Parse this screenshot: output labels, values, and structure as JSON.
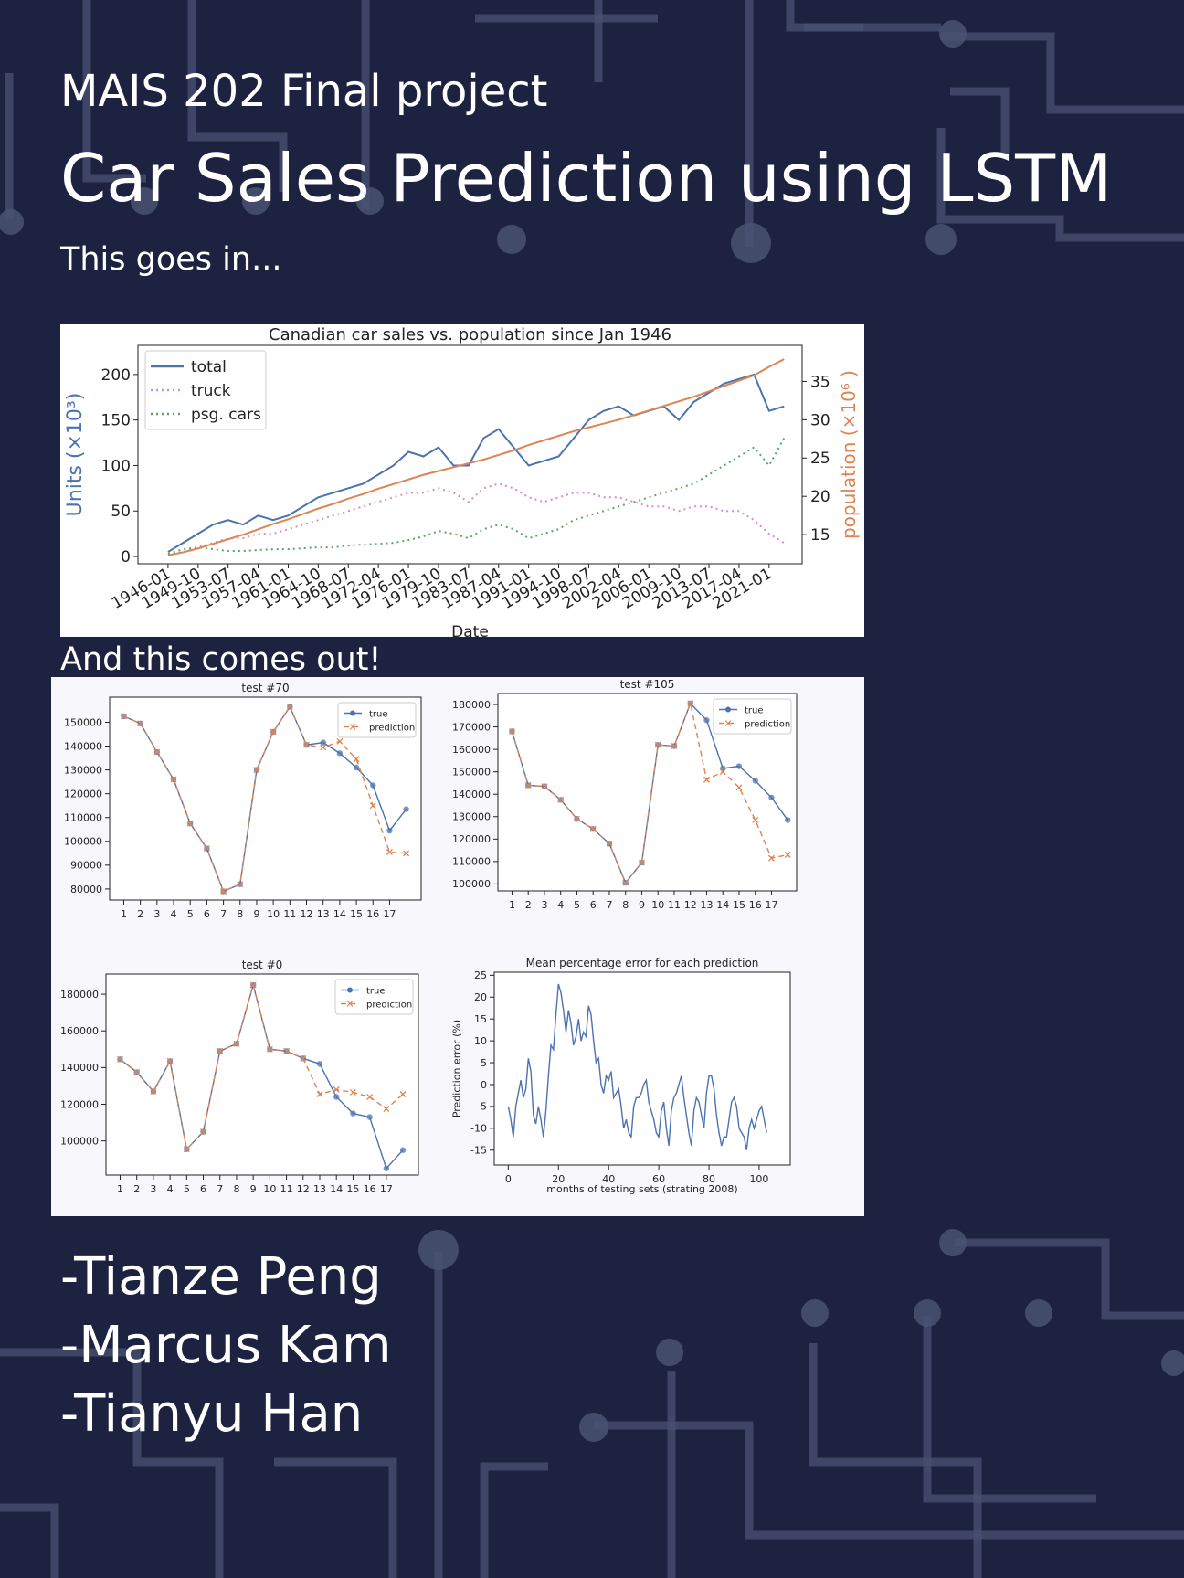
{
  "header": {
    "subtitle": "MAIS 202 Final project",
    "title": "Car Sales Prediction using LSTM",
    "intro": "This goes in...",
    "outro": "And this comes out!"
  },
  "authors": [
    "-Tianze Peng",
    "-Marcus Kam",
    "-Tianyu Han"
  ],
  "chart_data": [
    {
      "type": "line",
      "title": "Canadian car sales vs. population  since Jan 1946",
      "xlabel": "Date",
      "ylabel": "Units (×10³)",
      "ylabel_color": "#4c72b0",
      "y2label": "population (×10⁶ )",
      "y2label_color": "#dd8452",
      "categories": [
        "1946-01",
        null,
        "1949-10",
        null,
        "1953-07",
        null,
        "1957-04",
        null,
        "1961-01",
        null,
        "1964-10",
        null,
        "1968-07",
        null,
        "1972-04",
        null,
        "1976-01",
        null,
        "1979-10",
        null,
        "1983-07",
        null,
        "1987-04",
        null,
        "1991-01",
        null,
        "1994-10",
        null,
        "1998-07",
        null,
        "2002-04",
        null,
        "2006-01",
        null,
        "2009-10",
        null,
        "2013-07",
        null,
        "2017-04",
        null,
        "2021-01",
        null
      ],
      "ylim": [
        -8,
        232
      ],
      "yticks": [
        0,
        50,
        100,
        150,
        200
      ],
      "y2lim": [
        11.2,
        39.7
      ],
      "y2ticks": [
        15,
        20,
        25,
        30,
        35
      ],
      "legend": "upper left",
      "series": [
        {
          "name": "total",
          "color": "#4c72b0",
          "style": "solid",
          "values": [
            5,
            15,
            25,
            35,
            40,
            35,
            45,
            40,
            45,
            55,
            65,
            70,
            75,
            80,
            90,
            100,
            115,
            110,
            120,
            100,
            100,
            130,
            140,
            120,
            100,
            105,
            110,
            130,
            150,
            160,
            165,
            155,
            160,
            165,
            150,
            170,
            180,
            190,
            195,
            200,
            160,
            165
          ]
        },
        {
          "name": "truck",
          "color": "#da8bc3",
          "style": "dotted",
          "values": [
            2,
            5,
            10,
            15,
            20,
            20,
            25,
            25,
            30,
            35,
            40,
            45,
            50,
            55,
            60,
            65,
            70,
            70,
            75,
            70,
            60,
            75,
            80,
            75,
            65,
            60,
            65,
            70,
            70,
            65,
            65,
            60,
            55,
            55,
            50,
            55,
            55,
            50,
            50,
            40,
            25,
            15
          ]
        },
        {
          "name": "psg. cars",
          "color": "#55a868",
          "style": "dotted",
          "values": [
            3,
            8,
            10,
            8,
            6,
            6,
            7,
            8,
            8,
            9,
            10,
            10,
            12,
            13,
            14,
            15,
            18,
            22,
            28,
            25,
            20,
            30,
            35,
            30,
            20,
            25,
            30,
            40,
            45,
            50,
            55,
            60,
            65,
            70,
            75,
            80,
            90,
            100,
            110,
            120,
            100,
            130
          ]
        },
        {
          "color": "#dd8452",
          "style": "solid",
          "axis": "y2",
          "values": [
            12.3,
            12.7,
            13.2,
            13.8,
            14.4,
            15,
            15.7,
            16.4,
            17,
            17.7,
            18.4,
            19,
            19.7,
            20.3,
            21,
            21.6,
            22.2,
            22.8,
            23.3,
            23.8,
            24.3,
            24.8,
            25.4,
            26,
            26.7,
            27.3,
            27.9,
            28.5,
            29,
            29.5,
            30,
            30.6,
            31.2,
            31.8,
            32.4,
            33,
            33.7,
            34.4,
            35.1,
            35.8,
            36.9,
            37.9
          ]
        }
      ]
    },
    {
      "type": "line",
      "title": "test #70",
      "x": [
        1,
        2,
        3,
        4,
        5,
        6,
        7,
        8,
        9,
        10,
        11,
        12,
        13,
        14,
        15,
        16,
        17,
        18
      ],
      "xlim": [
        0.15,
        18.9
      ],
      "xticks": [
        1,
        2,
        3,
        4,
        5,
        6,
        7,
        8,
        9,
        10,
        11,
        12,
        13,
        14,
        15,
        16,
        17
      ],
      "ylim": [
        75360,
        160540
      ],
      "yticks": [
        80000,
        90000,
        100000,
        110000,
        120000,
        130000,
        140000,
        150000
      ],
      "legend": "upper right",
      "series": [
        {
          "name": "true",
          "color": "#4c72b0",
          "style": "solid",
          "marker": "o",
          "values": [
            152500,
            149500,
            137500,
            126000,
            107500,
            97000,
            79000,
            82000,
            130000,
            146000,
            156500,
            140500,
            141500,
            137000,
            131000,
            123500,
            104500,
            113500
          ]
        },
        {
          "name": "prediction",
          "color": "#dd8452",
          "style": "dashed",
          "marker": "x",
          "values": [
            152500,
            149500,
            137500,
            126000,
            107500,
            97000,
            79000,
            82000,
            130000,
            146000,
            156500,
            140500,
            139500,
            142000,
            134500,
            115000,
            95500,
            95000
          ]
        }
      ]
    },
    {
      "type": "line",
      "title": "test #105",
      "x": [
        1,
        2,
        3,
        4,
        5,
        6,
        7,
        8,
        9,
        10,
        11,
        12,
        13,
        14,
        15,
        16,
        17,
        18
      ],
      "xlim": [
        0.13,
        18.55
      ],
      "xticks": [
        1,
        2,
        3,
        4,
        5,
        6,
        7,
        8,
        9,
        10,
        11,
        12,
        13,
        14,
        15,
        16,
        17
      ],
      "ylim": [
        96900,
        184900
      ],
      "yticks": [
        100000,
        110000,
        120000,
        130000,
        140000,
        150000,
        160000,
        170000,
        180000
      ],
      "legend": "upper right",
      "series": [
        {
          "name": "true",
          "color": "#4c72b0",
          "style": "solid",
          "marker": "o",
          "values": [
            168000,
            144000,
            143500,
            137500,
            129000,
            124500,
            118000,
            100500,
            109500,
            162000,
            161500,
            180500,
            173000,
            151500,
            152500,
            146000,
            138500,
            128500
          ]
        },
        {
          "name": "prediction",
          "color": "#dd8452",
          "style": "dashed",
          "marker": "x",
          "values": [
            168000,
            144000,
            143500,
            137500,
            129000,
            124500,
            118000,
            100500,
            109500,
            162000,
            161500,
            180500,
            146500,
            150000,
            143000,
            128500,
            111500,
            113000
          ]
        }
      ]
    },
    {
      "type": "line",
      "title": "test #0",
      "x": [
        1,
        2,
        3,
        4,
        5,
        6,
        7,
        8,
        9,
        10,
        11,
        12,
        13,
        14,
        15,
        16,
        17,
        18
      ],
      "xlim": [
        0.15,
        18.93
      ],
      "xticks": [
        1,
        2,
        3,
        4,
        5,
        6,
        7,
        8,
        9,
        10,
        11,
        12,
        13,
        14,
        15,
        16,
        17
      ],
      "ylim": [
        81400,
        191000
      ],
      "yticks": [
        100000,
        120000,
        140000,
        160000,
        180000
      ],
      "legend": "upper right",
      "series": [
        {
          "name": "true",
          "color": "#4c72b0",
          "style": "solid",
          "marker": "o",
          "values": [
            144500,
            137500,
            127000,
            143500,
            95500,
            105000,
            149000,
            153000,
            185000,
            150000,
            149000,
            145000,
            142000,
            124000,
            115000,
            113000,
            85000,
            95000
          ]
        },
        {
          "name": "prediction",
          "color": "#dd8452",
          "style": "dashed",
          "marker": "x",
          "values": [
            144500,
            137500,
            127000,
            143500,
            95500,
            105000,
            149000,
            153000,
            185000,
            150000,
            149000,
            145000,
            125500,
            128000,
            126500,
            124000,
            117500,
            125500
          ]
        }
      ]
    },
    {
      "type": "line",
      "title": "Mean percentage error for each prediction",
      "xlabel": "months of testing sets (strating 2008)",
      "ylabel": "Prediction error (%)",
      "x": [
        0,
        1,
        2,
        3,
        4,
        5,
        6,
        7,
        8,
        9,
        10,
        11,
        12,
        13,
        14,
        15,
        16,
        17,
        18,
        19,
        20,
        21,
        22,
        23,
        24,
        25,
        26,
        27,
        28,
        29,
        30,
        31,
        32,
        33,
        34,
        35,
        36,
        37,
        38,
        39,
        40,
        41,
        42,
        43,
        44,
        45,
        46,
        47,
        48,
        49,
        50,
        51,
        52,
        53,
        54,
        55,
        56,
        57,
        58,
        59,
        60,
        61,
        62,
        63,
        64,
        65,
        66,
        67,
        68,
        69,
        70,
        71,
        72,
        73,
        74,
        75,
        76,
        77,
        78,
        79,
        80,
        81,
        82,
        83,
        84,
        85,
        86,
        87,
        88,
        89,
        90,
        91,
        92,
        93,
        94,
        95,
        96,
        97,
        98,
        99,
        100,
        101,
        102,
        103
      ],
      "xlim": [
        -5.6,
        112.4
      ],
      "xticks": [
        0,
        20,
        40,
        60,
        80,
        100
      ],
      "ylim": [
        -18.4,
        25.7
      ],
      "yticks": [
        -15,
        -10,
        -5,
        0,
        5,
        10,
        15,
        20,
        25
      ],
      "series": [
        {
          "color": "#4c72b0",
          "style": "solid",
          "values": [
            -5,
            -8,
            -12,
            -5,
            -2,
            1,
            -3,
            -1,
            6,
            3,
            -7,
            -9,
            -5,
            -8,
            -12,
            -6,
            2,
            9,
            8,
            16,
            23,
            21,
            17,
            12,
            17,
            14,
            9,
            11,
            15,
            10,
            12,
            11,
            18,
            16,
            10,
            5,
            6,
            0,
            -2,
            2,
            1,
            3,
            -3,
            -2,
            -1,
            -5,
            -10,
            -8,
            -11,
            -12,
            -5,
            -3,
            -3,
            -2,
            0,
            1,
            -4,
            -6,
            -8,
            -11,
            -12,
            -6,
            -4,
            -10,
            -14,
            -6,
            -3,
            -2,
            0,
            2,
            -3,
            -7,
            -11,
            -14,
            -6,
            -3,
            -4,
            -7,
            -10,
            -2,
            2,
            2,
            -1,
            -7,
            -11,
            -14,
            -12,
            -12,
            -8,
            -4,
            -3,
            -5,
            -10,
            -11,
            -12,
            -15,
            -10,
            -8,
            -10,
            -8,
            -6,
            -5,
            -8,
            -11
          ]
        }
      ]
    }
  ]
}
